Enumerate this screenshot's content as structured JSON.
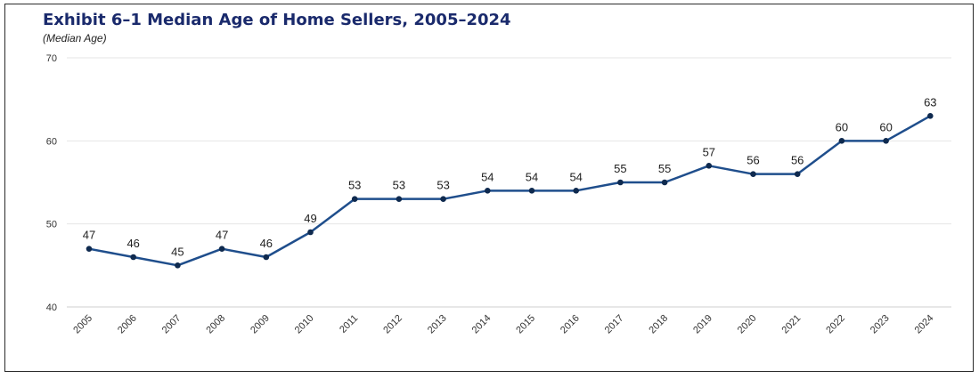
{
  "chart_data": {
    "type": "line",
    "title": "Exhibit 6–1 Median Age of Home Sellers, 2005–2024",
    "subtitle": "(Median Age)",
    "xlabel": "",
    "ylabel": "",
    "categories": [
      "2005",
      "2006",
      "2007",
      "2008",
      "2009",
      "2010",
      "2011",
      "2012",
      "2013",
      "2014",
      "2015",
      "2016",
      "2017",
      "2018",
      "2019",
      "2020",
      "2021",
      "2022",
      "2023",
      "2024"
    ],
    "values": [
      47,
      46,
      45,
      47,
      46,
      49,
      53,
      53,
      53,
      54,
      54,
      54,
      55,
      55,
      57,
      56,
      56,
      60,
      60,
      63
    ],
    "ylim": [
      40,
      70
    ],
    "yticks": [
      "40",
      "50",
      "60",
      "70"
    ],
    "grid": true,
    "legend": "none",
    "line_color": "#1f4e8c",
    "marker_color": "#0f2a4f"
  }
}
